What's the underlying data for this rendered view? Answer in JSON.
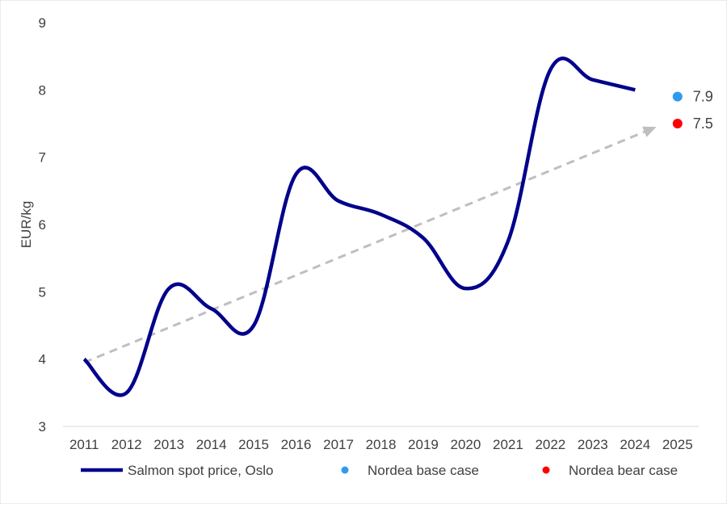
{
  "chart_data": {
    "type": "line",
    "ylabel": "EUR/kg",
    "ylim": [
      3,
      9
    ],
    "yticks": [
      3,
      4,
      5,
      6,
      7,
      8,
      9
    ],
    "categories": [
      "2011",
      "2012",
      "2013",
      "2014",
      "2015",
      "2016",
      "2017",
      "2018",
      "2019",
      "2020",
      "2021",
      "2022",
      "2023",
      "2024",
      "2025"
    ],
    "grid": false,
    "legend_position": "bottom",
    "series": [
      {
        "name": "Salmon spot price, Oslo",
        "type": "line",
        "color": "#00008B",
        "x": [
          2011,
          2012,
          2013,
          2014,
          2015,
          2016,
          2017,
          2018,
          2019,
          2020,
          2021,
          2022,
          2023,
          2024
        ],
        "values": [
          4.0,
          3.5,
          5.05,
          4.75,
          4.5,
          6.75,
          6.35,
          6.15,
          5.8,
          5.05,
          5.75,
          8.3,
          8.15,
          8.0
        ]
      },
      {
        "name": "Nordea base case",
        "type": "point",
        "color": "#2E9BF0",
        "x": [
          2025
        ],
        "values": [
          7.9
        ],
        "label": "7.9"
      },
      {
        "name": "Nordea bear case",
        "type": "point",
        "color": "#FF0000",
        "x": [
          2025
        ],
        "values": [
          7.5
        ],
        "label": "7.5"
      }
    ],
    "trend_arrow": {
      "color": "#BFBFBF",
      "from": {
        "x": 2011,
        "y": 3.95
      },
      "to": {
        "x": 2024.5,
        "y": 7.45
      }
    }
  }
}
